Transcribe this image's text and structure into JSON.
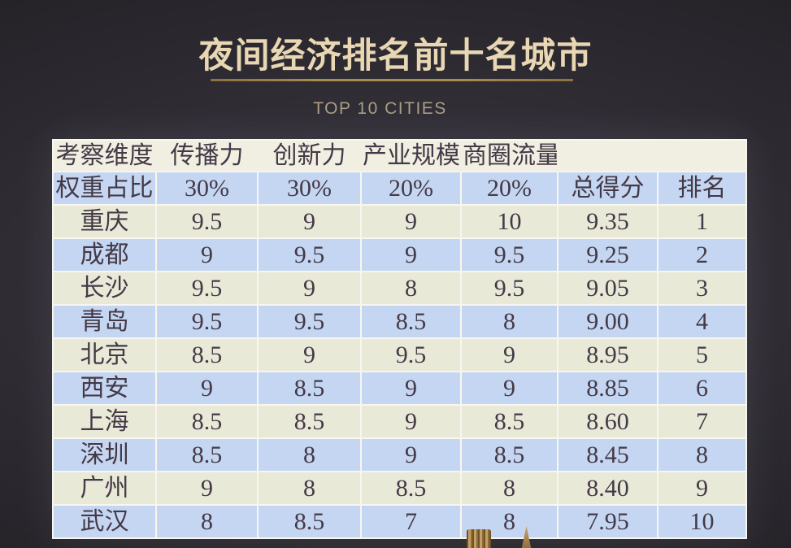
{
  "chart_data": {
    "type": "table",
    "title": "夜间经济排名前十名城市",
    "subtitle": "TOP 10 CITIES",
    "column_headers": [
      "考察维度",
      "传播力",
      "创新力",
      "产业规模",
      "商圈流量",
      "",
      ""
    ],
    "weight_row": [
      "权重占比",
      "30%",
      "30%",
      "20%",
      "20%",
      "总得分",
      "排名"
    ],
    "rows": [
      [
        "重庆",
        "9.5",
        "9",
        "9",
        "10",
        "9.35",
        "1"
      ],
      [
        "成都",
        "9",
        "9.5",
        "9",
        "9.5",
        "9.25",
        "2"
      ],
      [
        "长沙",
        "9.5",
        "9",
        "8",
        "9.5",
        "9.05",
        "3"
      ],
      [
        "青岛",
        "9.5",
        "9.5",
        "8.5",
        "8",
        "9.00",
        "4"
      ],
      [
        "北京",
        "8.5",
        "9",
        "9.5",
        "9",
        "8.95",
        "5"
      ],
      [
        "西安",
        "9",
        "8.5",
        "9",
        "9",
        "8.85",
        "6"
      ],
      [
        "上海",
        "8.5",
        "8.5",
        "9",
        "8.5",
        "8.60",
        "7"
      ],
      [
        "深圳",
        "8.5",
        "8",
        "9",
        "8.5",
        "8.45",
        "8"
      ],
      [
        "广州",
        "9",
        "8",
        "8.5",
        "8",
        "8.40",
        "9"
      ],
      [
        "武汉",
        "8",
        "8.5",
        "7",
        "8",
        "7.95",
        "10"
      ]
    ],
    "legend_position": "none",
    "grid": true
  },
  "colors": {
    "background": "#2e2b32",
    "title_text": "#e9d7b3",
    "title_underline": "#a98a52",
    "subtitle_text": "#ac9d84",
    "dimension_row_bg": "#f1efe2",
    "blue_row_bg": "#c4d6f2",
    "cream_row_bg": "#e9e9d8",
    "table_text": "#443946",
    "grid_line": "#f8f6ef"
  }
}
